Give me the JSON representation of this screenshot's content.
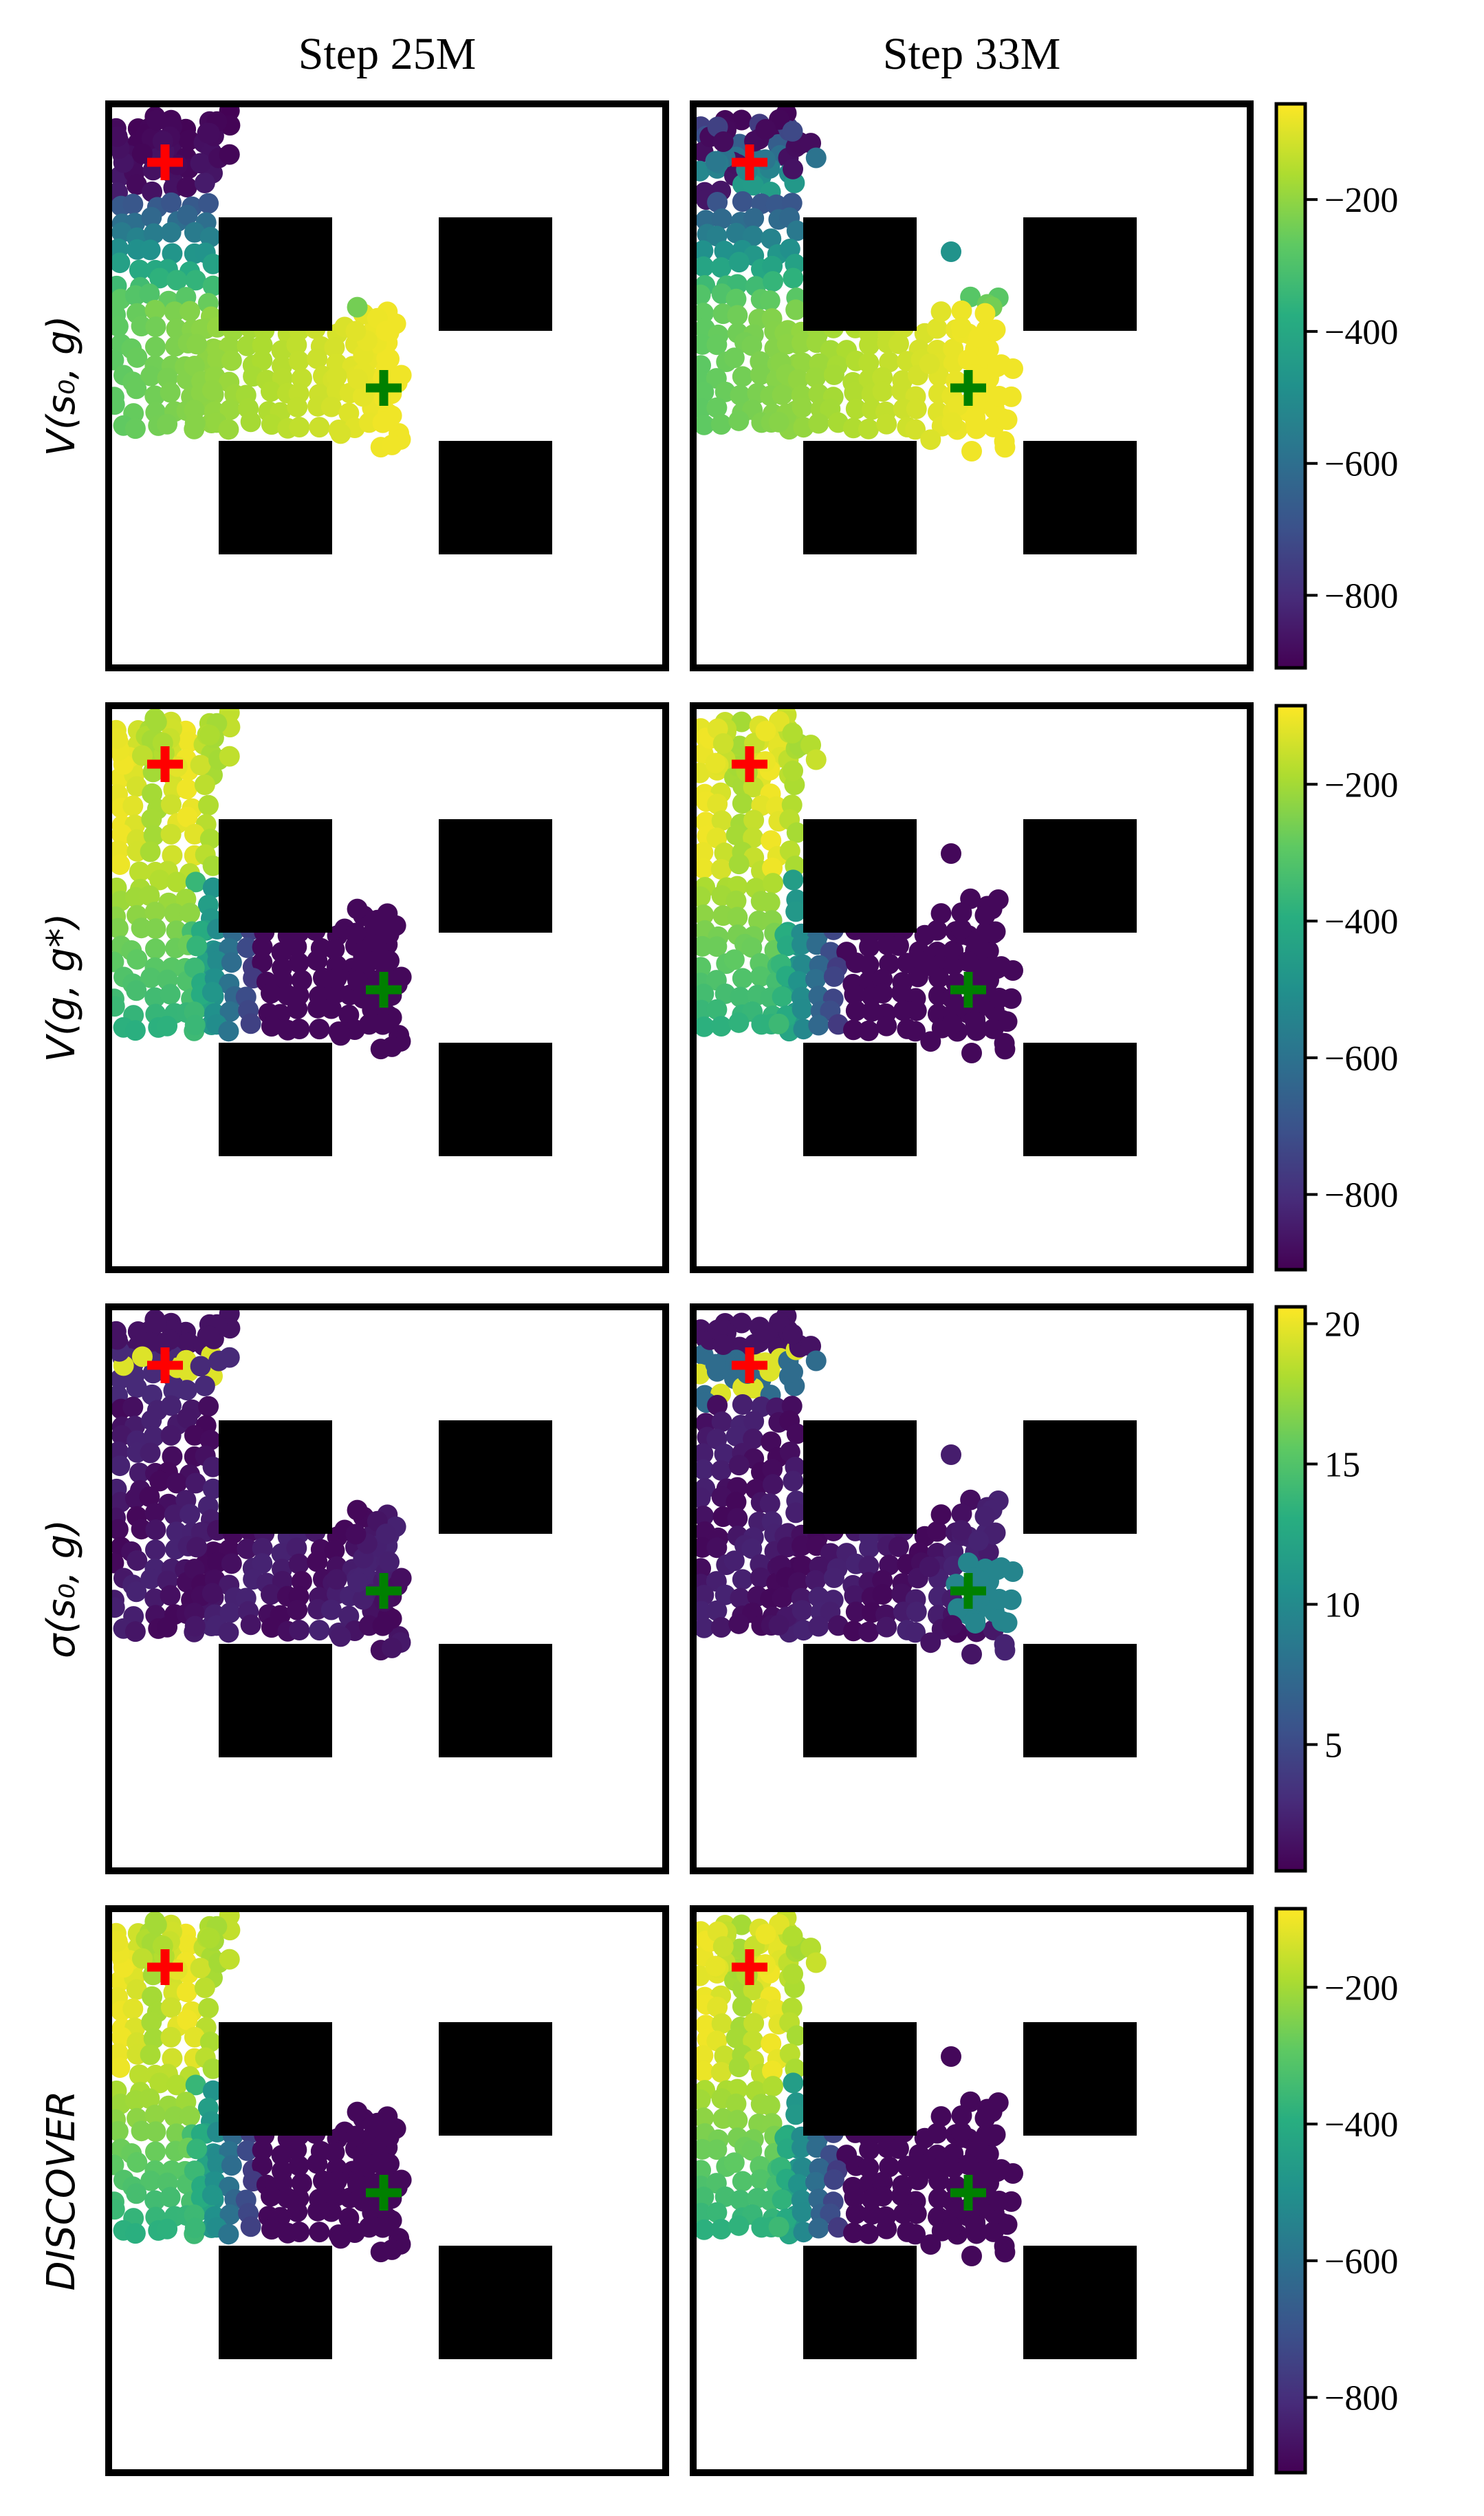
{
  "chart_data": {
    "type": "scatter",
    "columns": [
      "Step 25M",
      "Step 33M"
    ],
    "rows": [
      {
        "label": "V(s₀, g)",
        "colormap": "viridis",
        "range": [
          -910,
          -55
        ],
        "ticks": [
          -200,
          -400,
          -600,
          -800
        ],
        "tick_labels": [
          "−200",
          "−400",
          "−600",
          "−800"
        ],
        "pattern": "s0g"
      },
      {
        "label": "V(g, g*)",
        "colormap": "viridis",
        "range": [
          -910,
          -85
        ],
        "ticks": [
          -200,
          -400,
          -600,
          -800
        ],
        "tick_labels": [
          "−200",
          "−400",
          "−600",
          "−800"
        ],
        "pattern": "ggstar"
      },
      {
        "label": "σ(s₀, g)",
        "colormap": "viridis",
        "range": [
          0.5,
          20.6
        ],
        "ticks": [
          20,
          15,
          10,
          5
        ],
        "tick_labels": [
          "20",
          "15",
          "10",
          "5"
        ],
        "pattern": "sigma"
      },
      {
        "label": "DISCOVER",
        "colormap": "viridis",
        "range": [
          -910,
          -85
        ],
        "ticks": [
          -200,
          -400,
          -600,
          -800
        ],
        "tick_labels": [
          "−200",
          "−400",
          "−600",
          "−800"
        ],
        "pattern": "ggstar"
      }
    ],
    "start_marker": {
      "color": "#ff0000",
      "symbol": "plus"
    },
    "goal_marker": {
      "color": "#008000",
      "symbol": "plus"
    },
    "obstacle_color": "#000000"
  }
}
